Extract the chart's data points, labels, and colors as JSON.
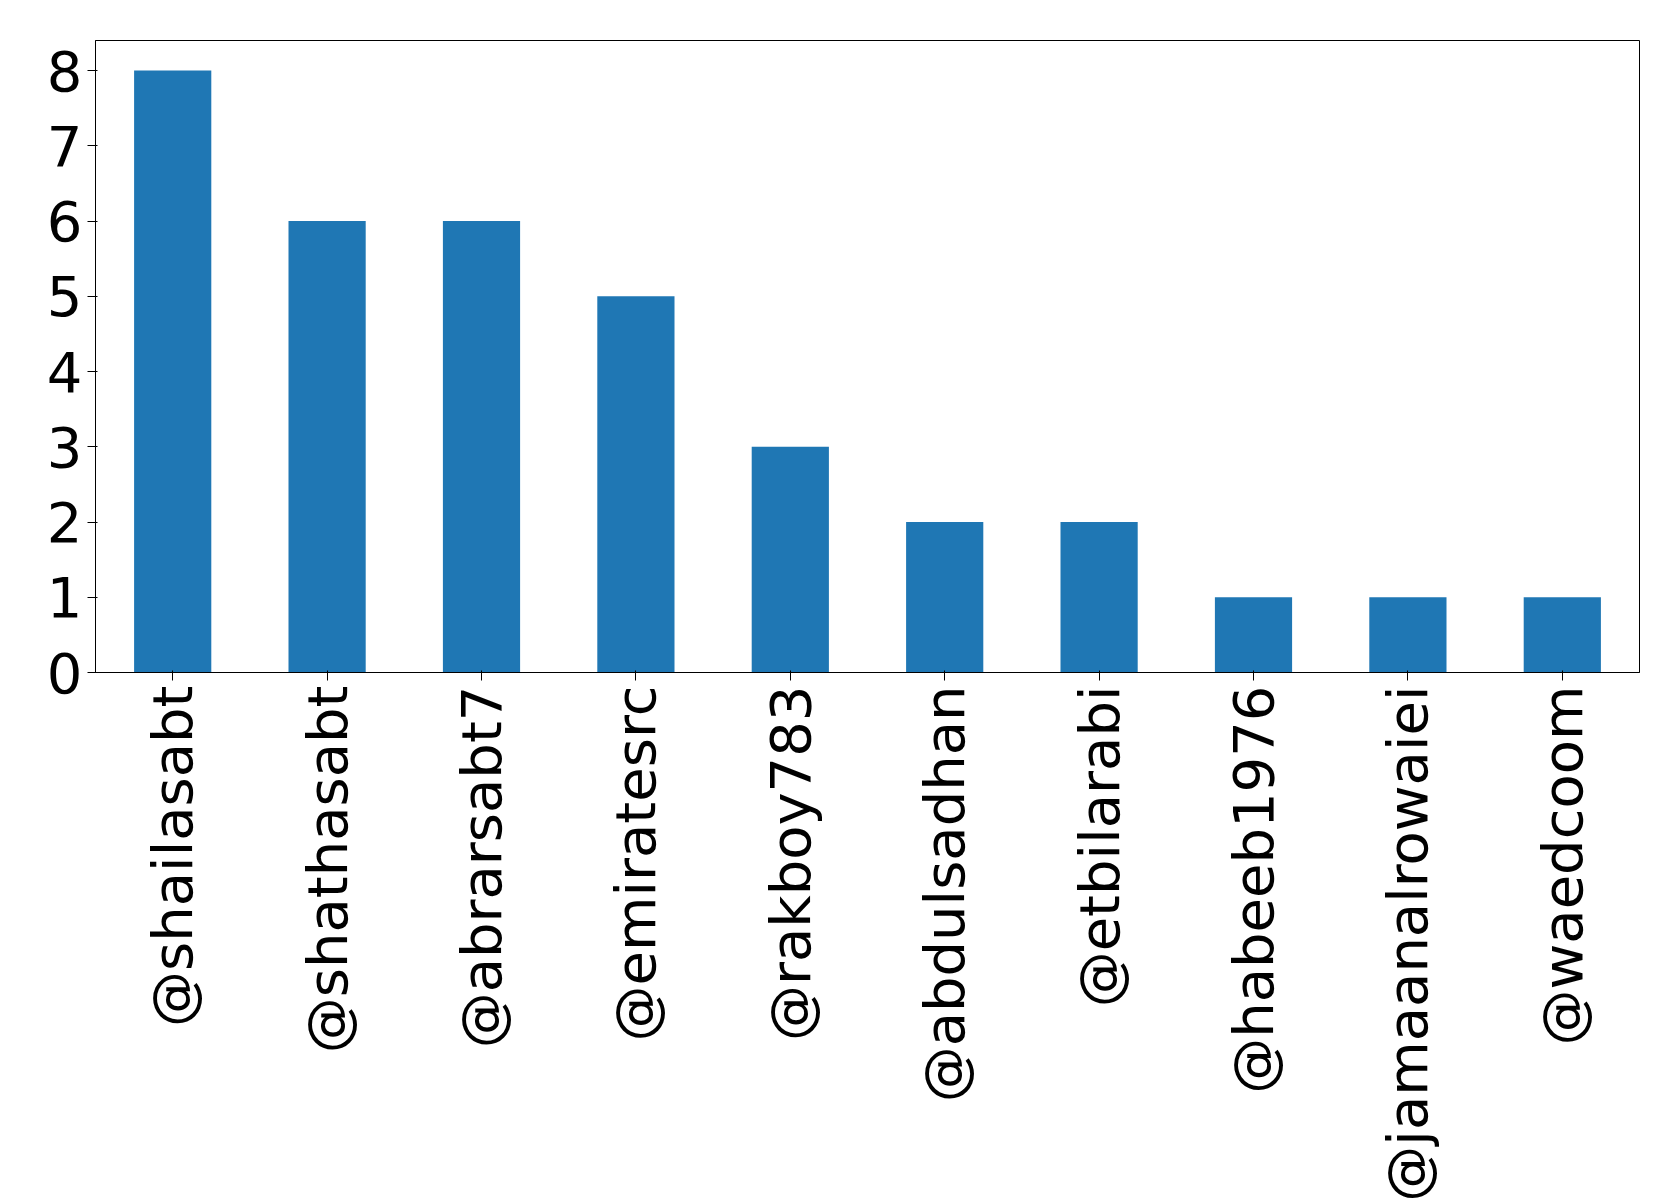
{
  "chart_data": {
    "type": "bar",
    "categories": [
      "@shailasabt",
      "@shathasabt",
      "@abrarsabt7",
      "@emiratesrc",
      "@rakboy783",
      "@abdulsadhan",
      "@etbilarabi",
      "@habeeb1976",
      "@jamaanalrowaiei",
      "@waedcoom"
    ],
    "values": [
      8,
      6,
      6,
      5,
      3,
      2,
      2,
      1,
      1,
      1
    ],
    "color": "#1f77b4",
    "ylim": [
      0,
      8.4
    ],
    "yticks": [
      0,
      1,
      2,
      3,
      4,
      5,
      6,
      7,
      8
    ],
    "grid": false
  }
}
